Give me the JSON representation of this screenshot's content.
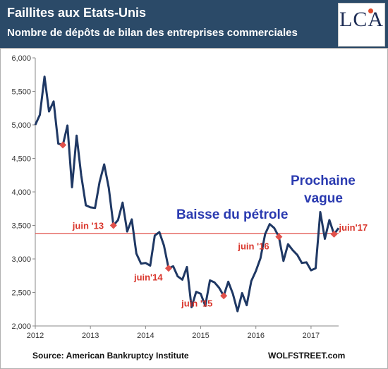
{
  "header": {
    "title": "Faillites aux Etats-Unis",
    "subtitle": "Nombre de dépôts de bilan des entreprises commerciales",
    "logo": "LCA"
  },
  "footer": {
    "source": "Source: American Bankruptcy Institute",
    "brand": "WOLFSTREET.com"
  },
  "colors": {
    "header_bg": "#2b4a68",
    "line": "#1f3864",
    "marker": "#e0504a",
    "reference": "#e0504a",
    "annotation_blue": "#2a3ab0"
  },
  "chart_data": {
    "type": "line",
    "title": "Faillites aux Etats-Unis",
    "subtitle": "Nombre de dépôts de bilan des entreprises commerciales",
    "xlabel": "",
    "ylabel": "",
    "ylim": [
      2000,
      6000
    ],
    "xlim": [
      2012,
      2017.5
    ],
    "y_ticks": [
      "2,000",
      "2,500",
      "3,000",
      "3,500",
      "4,000",
      "4,500",
      "5,000",
      "5,500",
      "6,000"
    ],
    "x_ticks": [
      "2012",
      "2013",
      "2014",
      "2015",
      "2016",
      "2017"
    ],
    "grid": false,
    "reference_line": {
      "y": 3380
    },
    "series": [
      {
        "x": [
          2012.0,
          2012.083,
          2012.167,
          2012.25,
          2012.333,
          2012.417,
          2012.5,
          2012.583,
          2012.667,
          2012.75,
          2012.833,
          2012.917,
          2013.0,
          2013.083,
          2013.167,
          2013.25,
          2013.333,
          2013.417,
          2013.5,
          2013.583,
          2013.667,
          2013.75,
          2013.833,
          2013.917,
          2014.0,
          2014.083,
          2014.167,
          2014.25,
          2014.333,
          2014.417,
          2014.5,
          2014.583,
          2014.667,
          2014.75,
          2014.833,
          2014.917,
          2015.0,
          2015.083,
          2015.167,
          2015.25,
          2015.333,
          2015.417,
          2015.5,
          2015.583,
          2015.667,
          2015.75,
          2015.833,
          2015.917,
          2016.0,
          2016.083,
          2016.167,
          2016.25,
          2016.333,
          2016.417,
          2016.5,
          2016.583,
          2016.667,
          2016.75,
          2016.833,
          2016.917,
          2017.0,
          2017.083,
          2017.167,
          2017.25,
          2017.333,
          2017.417,
          2017.5
        ],
        "values": [
          5000,
          5150,
          5720,
          5200,
          5350,
          4720,
          4700,
          4990,
          4070,
          4840,
          4250,
          3800,
          3770,
          3760,
          4150,
          4410,
          4060,
          3500,
          3580,
          3840,
          3410,
          3590,
          3080,
          2930,
          2940,
          2900,
          3350,
          3400,
          3200,
          2860,
          2890,
          2740,
          2690,
          2880,
          2280,
          2510,
          2480,
          2300,
          2680,
          2650,
          2570,
          2450,
          2660,
          2480,
          2220,
          2490,
          2310,
          2670,
          2820,
          3010,
          3370,
          3520,
          3460,
          3330,
          2970,
          3220,
          3130,
          3060,
          2940,
          2950,
          2830,
          2860,
          3700,
          3300,
          3580,
          3370,
          3460
        ]
      }
    ],
    "markers": [
      {
        "x": 2012.5,
        "y": 4700
      },
      {
        "x": 2013.417,
        "y": 3500,
        "label": "juin '13"
      },
      {
        "x": 2014.417,
        "y": 2860,
        "label": "juin'14"
      },
      {
        "x": 2015.417,
        "y": 2450,
        "label": "juin '15"
      },
      {
        "x": 2016.417,
        "y": 3330,
        "label": "juin '16"
      },
      {
        "x": 2017.417,
        "y": 3370,
        "label": "juin'17"
      }
    ],
    "annotations": [
      "Baisse du pétrole",
      "Prochaine",
      "vague"
    ]
  }
}
